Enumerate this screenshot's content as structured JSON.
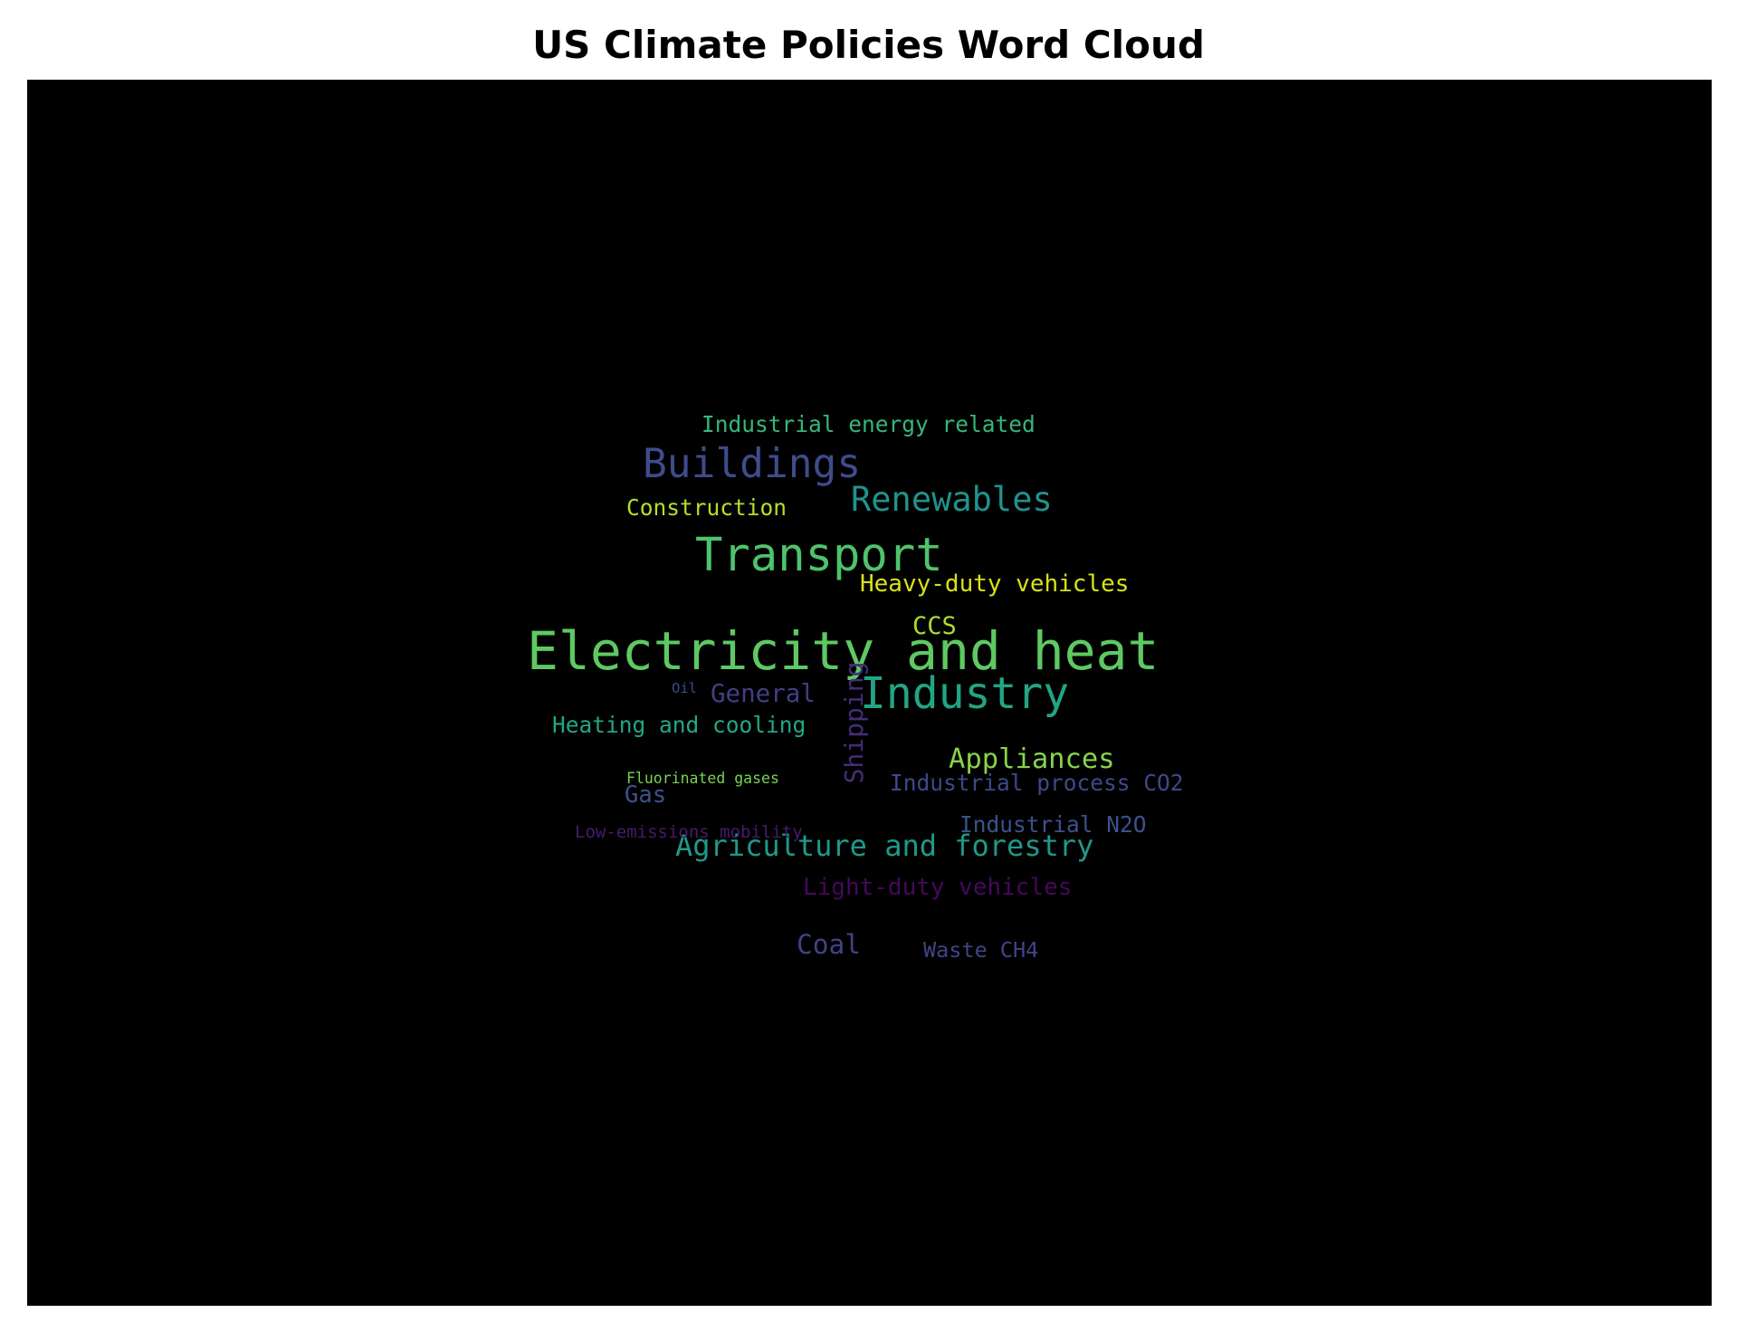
{
  "chart_data": {
    "type": "wordcloud",
    "title": "US Climate Policies Word Cloud",
    "background": "#000000",
    "colormap": "viridis",
    "words": [
      {
        "text": "Electricity and heat",
        "weight": 100,
        "color": "#5ec962",
        "orientation": "horizontal"
      },
      {
        "text": "Transport",
        "weight": 85,
        "color": "#4ec36b",
        "orientation": "horizontal"
      },
      {
        "text": "Industry",
        "weight": 80,
        "color": "#21a585",
        "orientation": "horizontal"
      },
      {
        "text": "Buildings",
        "weight": 73,
        "color": "#3e4c8a",
        "orientation": "horizontal"
      },
      {
        "text": "Renewables",
        "weight": 58,
        "color": "#20928c",
        "orientation": "horizontal"
      },
      {
        "text": "Agriculture and forestry",
        "weight": 48,
        "color": "#1f998a",
        "orientation": "horizontal"
      },
      {
        "text": "Appliances",
        "weight": 45,
        "color": "#86d549",
        "orientation": "horizontal"
      },
      {
        "text": "Coal",
        "weight": 43,
        "color": "#414287",
        "orientation": "horizontal"
      },
      {
        "text": "Shipping",
        "weight": 40,
        "color": "#472c7a",
        "orientation": "vertical"
      },
      {
        "text": "General",
        "weight": 39,
        "color": "#433e85",
        "orientation": "horizontal"
      },
      {
        "text": "CCS",
        "weight": 38,
        "color": "#addc30",
        "orientation": "horizontal"
      },
      {
        "text": "Heavy-duty vehicles",
        "weight": 36,
        "color": "#d8e219",
        "orientation": "horizontal"
      },
      {
        "text": "Light-duty vehicles",
        "weight": 36,
        "color": "#46085c",
        "orientation": "horizontal"
      },
      {
        "text": "Gas",
        "weight": 35,
        "color": "#3b528b",
        "orientation": "horizontal"
      },
      {
        "text": "Industrial energy related",
        "weight": 33,
        "color": "#35b779",
        "orientation": "horizontal"
      },
      {
        "text": "Construction",
        "weight": 33,
        "color": "#b5de2b",
        "orientation": "horizontal"
      },
      {
        "text": "Heating and cooling",
        "weight": 33,
        "color": "#22a884",
        "orientation": "horizontal"
      },
      {
        "text": "Industrial process CO2",
        "weight": 33,
        "color": "#3e4989",
        "orientation": "horizontal"
      },
      {
        "text": "Industrial N2O",
        "weight": 33,
        "color": "#3b528b",
        "orientation": "horizontal"
      },
      {
        "text": "Waste CH4",
        "weight": 31,
        "color": "#414487",
        "orientation": "horizontal"
      },
      {
        "text": "Low-emissions mobility",
        "weight": 22,
        "color": "#481a6c",
        "orientation": "horizontal"
      },
      {
        "text": "Fluorinated gases",
        "weight": 17,
        "color": "#7ad151",
        "orientation": "horizontal"
      },
      {
        "text": "Oil",
        "weight": 15,
        "color": "#3e4a89",
        "orientation": "horizontal"
      }
    ]
  }
}
